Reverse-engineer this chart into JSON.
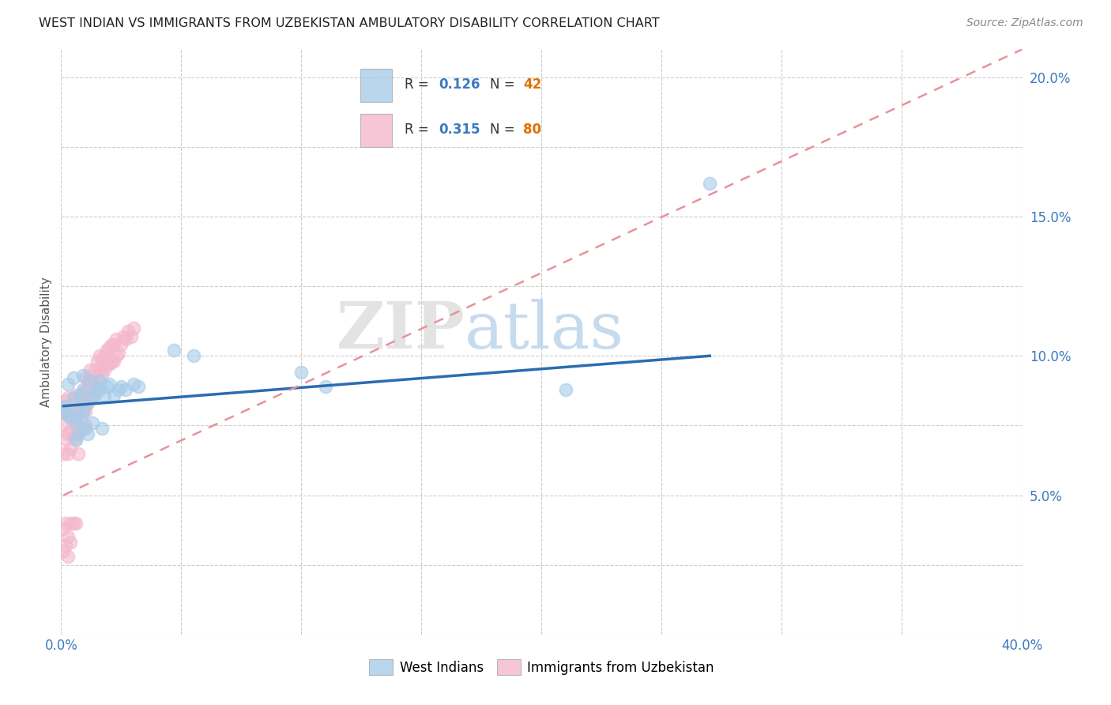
{
  "title": "WEST INDIAN VS IMMIGRANTS FROM UZBEKISTAN AMBULATORY DISABILITY CORRELATION CHART",
  "source": "Source: ZipAtlas.com",
  "ylabel": "Ambulatory Disability",
  "xlim": [
    0.0,
    0.4
  ],
  "ylim": [
    0.0,
    0.21
  ],
  "color_blue": "#a8cce8",
  "color_pink": "#f4b8cc",
  "trendline_blue": "#2b6cb0",
  "trendline_pink": "#e8929a",
  "watermark_zip": "ZIP",
  "watermark_atlas": "atlas",
  "west_indians_x": [
    0.001,
    0.002,
    0.003,
    0.003,
    0.004,
    0.005,
    0.005,
    0.006,
    0.006,
    0.007,
    0.007,
    0.008,
    0.008,
    0.009,
    0.009,
    0.009,
    0.01,
    0.01,
    0.011,
    0.012,
    0.013,
    0.013,
    0.014,
    0.015,
    0.016,
    0.016,
    0.017,
    0.018,
    0.019,
    0.02,
    0.022,
    0.024,
    0.025,
    0.027,
    0.03,
    0.032,
    0.047,
    0.055,
    0.1,
    0.11,
    0.21,
    0.27
  ],
  "west_indians_y": [
    0.08,
    0.082,
    0.079,
    0.09,
    0.078,
    0.085,
    0.092,
    0.07,
    0.076,
    0.072,
    0.08,
    0.077,
    0.086,
    0.08,
    0.088,
    0.093,
    0.074,
    0.082,
    0.072,
    0.091,
    0.076,
    0.085,
    0.086,
    0.088,
    0.088,
    0.091,
    0.074,
    0.086,
    0.089,
    0.09,
    0.086,
    0.088,
    0.089,
    0.088,
    0.09,
    0.089,
    0.102,
    0.1,
    0.094,
    0.089,
    0.088,
    0.162
  ],
  "uzbekistan_x": [
    0.001,
    0.001,
    0.001,
    0.002,
    0.002,
    0.002,
    0.003,
    0.003,
    0.003,
    0.003,
    0.004,
    0.004,
    0.004,
    0.005,
    0.005,
    0.005,
    0.006,
    0.006,
    0.006,
    0.006,
    0.007,
    0.007,
    0.007,
    0.007,
    0.008,
    0.008,
    0.008,
    0.009,
    0.009,
    0.009,
    0.01,
    0.01,
    0.01,
    0.01,
    0.01,
    0.011,
    0.011,
    0.011,
    0.012,
    0.012,
    0.012,
    0.013,
    0.013,
    0.014,
    0.014,
    0.015,
    0.015,
    0.016,
    0.016,
    0.017,
    0.017,
    0.018,
    0.018,
    0.019,
    0.019,
    0.02,
    0.02,
    0.021,
    0.021,
    0.022,
    0.022,
    0.023,
    0.023,
    0.024,
    0.025,
    0.026,
    0.027,
    0.028,
    0.029,
    0.03,
    0.001,
    0.001,
    0.002,
    0.002,
    0.003,
    0.003,
    0.004,
    0.004,
    0.005,
    0.006
  ],
  "uzbekistan_y": [
    0.075,
    0.082,
    0.065,
    0.079,
    0.084,
    0.07,
    0.072,
    0.079,
    0.085,
    0.065,
    0.078,
    0.073,
    0.067,
    0.071,
    0.077,
    0.083,
    0.075,
    0.081,
    0.086,
    0.07,
    0.073,
    0.079,
    0.084,
    0.065,
    0.074,
    0.08,
    0.086,
    0.074,
    0.08,
    0.087,
    0.075,
    0.08,
    0.086,
    0.092,
    0.087,
    0.083,
    0.088,
    0.091,
    0.085,
    0.09,
    0.095,
    0.088,
    0.093,
    0.09,
    0.095,
    0.092,
    0.098,
    0.095,
    0.1,
    0.093,
    0.098,
    0.095,
    0.1,
    0.097,
    0.102,
    0.097,
    0.103,
    0.098,
    0.104,
    0.098,
    0.104,
    0.1,
    0.106,
    0.101,
    0.104,
    0.107,
    0.106,
    0.109,
    0.107,
    0.11,
    0.038,
    0.03,
    0.04,
    0.032,
    0.035,
    0.028,
    0.04,
    0.033,
    0.04,
    0.04
  ],
  "wi_trendline_x": [
    0.001,
    0.27
  ],
  "wi_trendline_y_start": 0.082,
  "wi_trendline_y_end": 0.1,
  "uz_trendline_x": [
    0.001,
    0.4
  ],
  "uz_trendline_y_start": 0.05,
  "uz_trendline_y_end": 0.21
}
